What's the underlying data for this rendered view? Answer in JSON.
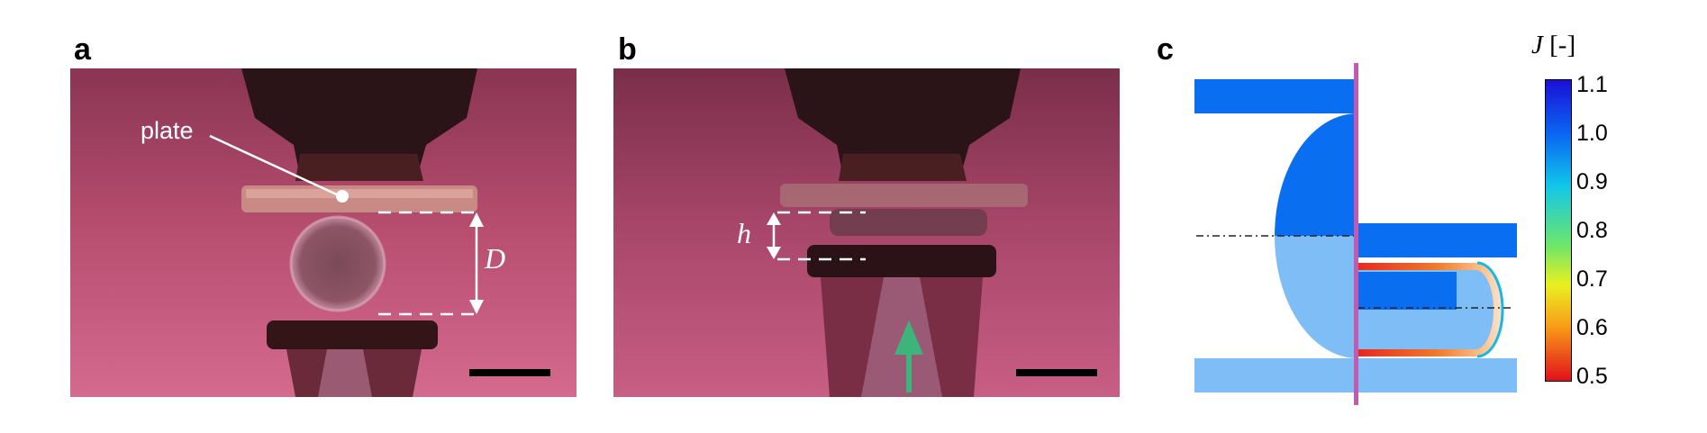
{
  "panels": {
    "a": {
      "letter": "a",
      "plate_label": "plate",
      "dim_label": "D"
    },
    "b": {
      "letter": "b",
      "dim_label": "h"
    },
    "c": {
      "letter": "c",
      "colorbar": {
        "symbol": "J",
        "unit": "[-]",
        "ticks": [
          "1.1",
          "1.0",
          "0.9",
          "0.8",
          "0.7",
          "0.6",
          "0.5"
        ]
      }
    }
  },
  "colors": {
    "photo_bg": "#b9506f",
    "dark_blue": "#0a6ef0",
    "light_blue": "#7fbdf7",
    "divider": "#c45ab0",
    "arrow_green": "#3db57a"
  }
}
